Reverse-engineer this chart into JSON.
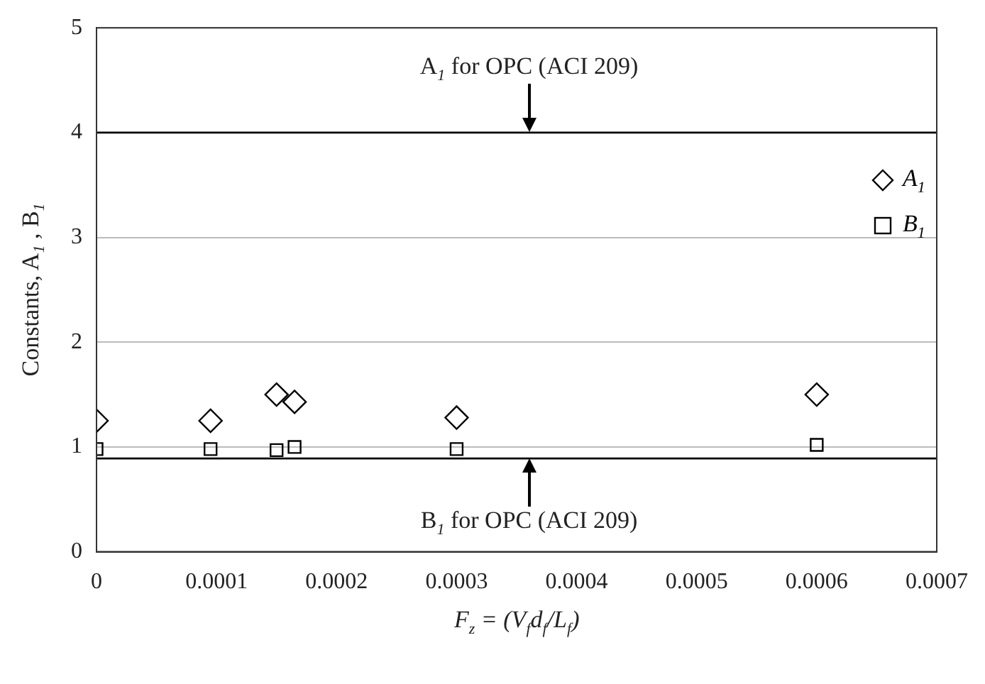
{
  "chart_data": {
    "type": "scatter",
    "xlabel": "F$_{z}$ = (V$_{f}$d$_{f}$/L$_{f}$)",
    "ylabel": "Constants, A$_{1}$ , B$_{1}$",
    "x": [
      0,
      9.5e-05,
      0.00015,
      0.000165,
      0.0003,
      0.0006
    ],
    "series": [
      {
        "name": "A$_{1}$",
        "color": "#000000",
        "marker": "diamond",
        "values": [
          1.25,
          1.25,
          1.5,
          1.43,
          1.28,
          1.5
        ]
      },
      {
        "name": "B$_{1}$",
        "color": "#000000",
        "marker": "square",
        "values": [
          0.98,
          0.98,
          0.97,
          1.0,
          0.98,
          1.02
        ]
      }
    ],
    "xlim": [
      0,
      0.0007
    ],
    "xticks": [
      0,
      0.0001,
      0.0002,
      0.0003,
      0.0004,
      0.0005,
      0.0006,
      0.0007
    ],
    "ylim": [
      0,
      5
    ],
    "yticks": [
      0,
      1,
      2,
      3,
      4,
      5
    ],
    "ref_lines": [
      {
        "axis": "y",
        "value": 4,
        "label": "A$_{1}$  for OPC (ACI 209)",
        "color": "#000000",
        "line_style": "solid"
      },
      {
        "axis": "y",
        "value": 0.89,
        "label": "B$_{1}$  for OPC (ACI 209)",
        "color": "#000000",
        "line_style": "solid"
      }
    ],
    "grid": "y",
    "legend": "top right"
  }
}
